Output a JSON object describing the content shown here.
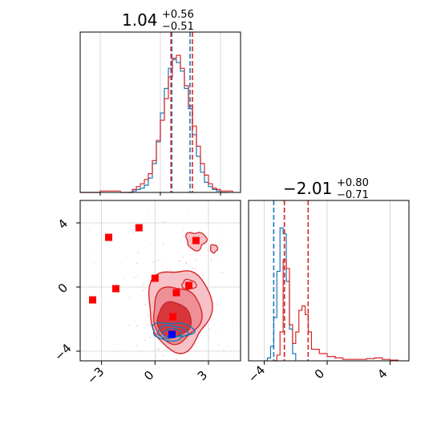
{
  "chart_data": [
    {
      "type": "histogram",
      "panel": "top-left",
      "title": {
        "main": "1.04",
        "sup": "+0.56",
        "sub": "−0.51"
      },
      "xlim": [
        -4,
        4
      ],
      "grid": true,
      "series": [
        {
          "color": "#1f77b4",
          "x": [
            -1.6,
            -1.4,
            -1.2,
            -1.0,
            -0.8,
            -0.6,
            -0.4,
            -0.2,
            0.0,
            0.2,
            0.4,
            0.6,
            0.8,
            1.0,
            1.2,
            1.4,
            1.6,
            1.8,
            2.0,
            2.2,
            2.4,
            2.6,
            2.8,
            3.0,
            3.2,
            3.4
          ],
          "values": [
            0.0,
            0.01,
            0.02,
            0.03,
            0.05,
            0.1,
            0.2,
            0.35,
            0.55,
            0.72,
            0.86,
            0.92,
            0.9,
            0.84,
            0.72,
            0.58,
            0.4,
            0.25,
            0.14,
            0.07,
            0.04,
            0.02,
            0.01,
            0.0,
            0.0,
            0.0
          ],
          "quantile_lines": [
            0.57,
            1.48
          ]
        },
        {
          "color": "#d62728",
          "x": [
            -4.0,
            -3.0,
            -2.0,
            -1.4,
            -1.2,
            -1.0,
            -0.8,
            -0.6,
            -0.4,
            -0.2,
            0.0,
            0.2,
            0.4,
            0.6,
            0.8,
            1.0,
            1.2,
            1.4,
            1.6,
            1.8,
            2.0,
            2.2,
            2.4,
            2.6,
            2.8,
            3.0,
            3.6
          ],
          "values": [
            0.0,
            0.01,
            0.0,
            0.02,
            0.04,
            0.06,
            0.09,
            0.13,
            0.22,
            0.36,
            0.5,
            0.65,
            0.8,
            0.93,
            0.95,
            0.86,
            0.74,
            0.6,
            0.46,
            0.32,
            0.2,
            0.12,
            0.06,
            0.03,
            0.02,
            0.01,
            0.0
          ],
          "quantile_lines": [
            0.53,
            1.6
          ]
        }
      ]
    },
    {
      "type": "histogram",
      "panel": "bottom-right",
      "title": {
        "main": "−2.01",
        "sup": "+0.80",
        "sub": "−0.71"
      },
      "xlim": [
        -5,
        5.2
      ],
      "xticks": [
        "−4",
        "0",
        "4"
      ],
      "grid": true,
      "series": [
        {
          "color": "#1f77b4",
          "x": [
            -4.0,
            -3.8,
            -3.6,
            -3.4,
            -3.2,
            -3.0,
            -2.8,
            -2.6,
            -2.4,
            -2.2,
            -2.0
          ],
          "values": [
            0.0,
            0.02,
            0.1,
            0.3,
            0.62,
            0.92,
            0.88,
            0.55,
            0.22,
            0.05,
            0.0
          ],
          "quantile_lines": [
            -3.4,
            -2.72
          ]
        },
        {
          "color": "#d62728",
          "x": [
            -3.4,
            -3.2,
            -3.0,
            -2.8,
            -2.6,
            -2.4,
            -2.2,
            -2.0,
            -1.8,
            -1.6,
            -1.4,
            -1.2,
            -1.0,
            -0.5,
            0.0,
            0.5,
            1.0,
            1.5,
            2.0,
            2.5,
            3.0,
            3.5,
            4.0,
            4.5
          ],
          "values": [
            0.0,
            0.04,
            0.2,
            0.7,
            0.64,
            0.25,
            0.12,
            0.2,
            0.35,
            0.38,
            0.32,
            0.2,
            0.08,
            0.05,
            0.03,
            0.02,
            0.01,
            0.01,
            0.01,
            0.015,
            0.02,
            0.01,
            0.005,
            0.0
          ],
          "quantile_lines": [
            -2.72,
            -1.21
          ]
        }
      ]
    },
    {
      "type": "scatter",
      "panel": "bottom-left",
      "xlim": [
        -4.2,
        4.8
      ],
      "ylim": [
        -4.6,
        5.4
      ],
      "xticks": [
        "−3",
        "0",
        "3"
      ],
      "yticks": [
        "−4",
        "0",
        "4"
      ],
      "grid": true,
      "red_markers": [
        [
          -3.5,
          -0.8
        ],
        [
          -2.6,
          3.1
        ],
        [
          -2.2,
          -0.1
        ],
        [
          -0.9,
          3.7
        ],
        [
          0.0,
          0.55
        ],
        [
          1.2,
          -0.35
        ],
        [
          1.9,
          0.1
        ],
        [
          2.3,
          2.9
        ],
        [
          1.0,
          -1.85
        ]
      ],
      "blue_marker": [
        0.95,
        -2.95
      ],
      "red_contour_center": [
        1.05,
        -2.05
      ],
      "blue_contour_center": [
        0.95,
        -2.95
      ]
    }
  ]
}
